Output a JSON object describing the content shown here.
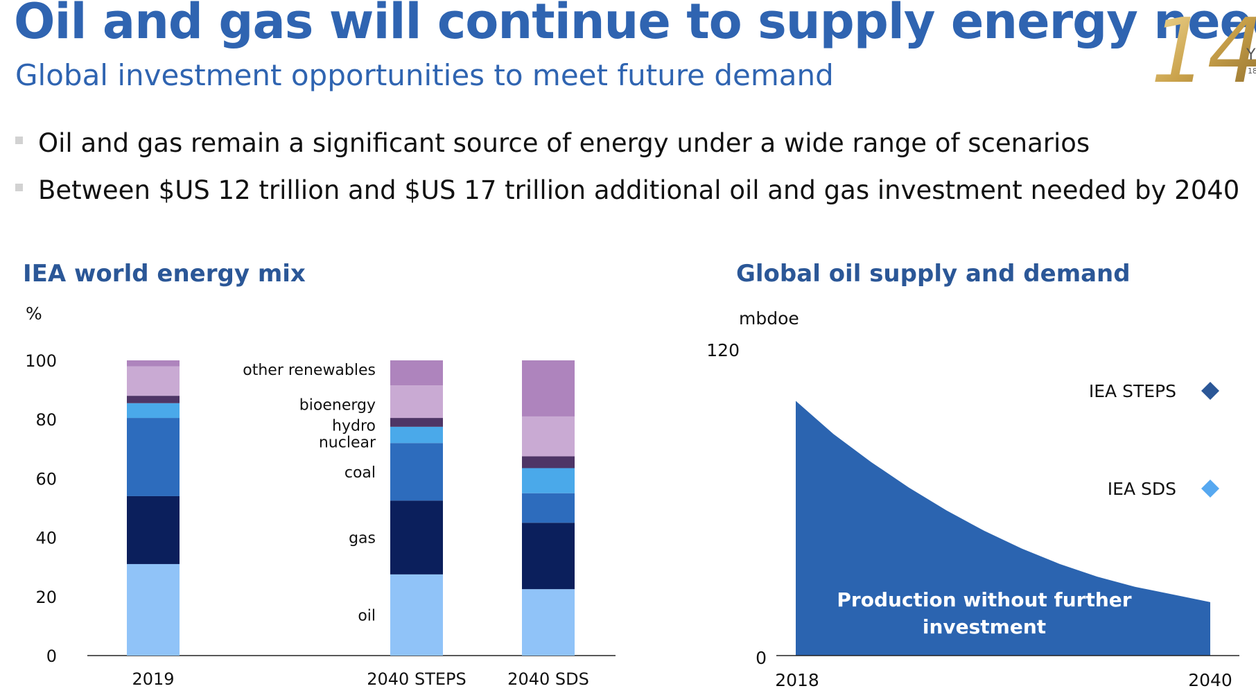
{
  "header": {
    "title": "Oil and gas will continue to supply energy needs",
    "subtitle": "Global investment opportunities to meet future demand",
    "logo_text": "14",
    "logo_fragments": [
      "Y",
      "18"
    ]
  },
  "bullets": [
    "Oil and gas remain a significant source of energy under a wide range of scenarios",
    "Between $US 12 trillion and $US 17 trillion additional oil and gas investment needed by 2040"
  ],
  "colors": {
    "title": "#2f64b1",
    "chart_title": "#2b5797",
    "oil": "#90c3f8",
    "gas": "#0b1f5c",
    "coal": "#2d6cbd",
    "nuclear": "#4aa9ea",
    "hydro": "#4e3566",
    "bioenergy": "#c9aad3",
    "other_renewables": "#ae84bd",
    "area": "#2b64b0",
    "steps_marker": "#2b5797",
    "sds_marker": "#56a8f0",
    "logo_gold": "#c9a14a"
  },
  "chart_data": [
    {
      "type": "bar",
      "stacked": true,
      "title": "IEA world energy mix",
      "ylabel": "%",
      "ylim": [
        0,
        100
      ],
      "yticks": [
        "0",
        "20",
        "40",
        "60",
        "80",
        "100"
      ],
      "categories": [
        "2019",
        "2040 STEPS",
        "2040 SDS"
      ],
      "series": [
        {
          "name": "oil",
          "values": [
            31,
            27.5,
            22.5
          ]
        },
        {
          "name": "gas",
          "values": [
            23,
            25,
            22.5
          ]
        },
        {
          "name": "coal",
          "values": [
            26.5,
            19.5,
            10
          ]
        },
        {
          "name": "nuclear",
          "values": [
            5,
            5.5,
            8.5
          ]
        },
        {
          "name": "hydro",
          "values": [
            2.5,
            3,
            4
          ]
        },
        {
          "name": "bioenergy",
          "values": [
            10,
            11,
            13.5
          ]
        },
        {
          "name": "other renewables",
          "values": [
            2,
            8.5,
            19
          ]
        }
      ],
      "legend_placement": "inline-left-of-2040-STEPS"
    },
    {
      "type": "area",
      "title": "Global oil supply and demand",
      "ylabel": "mbdoe",
      "ylim": [
        0,
        120
      ],
      "yticks": [
        "0",
        "120"
      ],
      "xticks": [
        "2018",
        "2040"
      ],
      "x_range": [
        2018,
        2040
      ],
      "series": [
        {
          "name": "Production without further investment",
          "x": [
            2018,
            2020,
            2022,
            2024,
            2026,
            2028,
            2030,
            2032,
            2034,
            2036,
            2038,
            2040
          ],
          "values": [
            100,
            87,
            76,
            66,
            57,
            49,
            42,
            36,
            31,
            27,
            24,
            21
          ]
        }
      ],
      "markers": [
        {
          "name": "IEA STEPS",
          "shape": "diamond"
        },
        {
          "name": "IEA SDS",
          "shape": "diamond"
        }
      ]
    }
  ]
}
